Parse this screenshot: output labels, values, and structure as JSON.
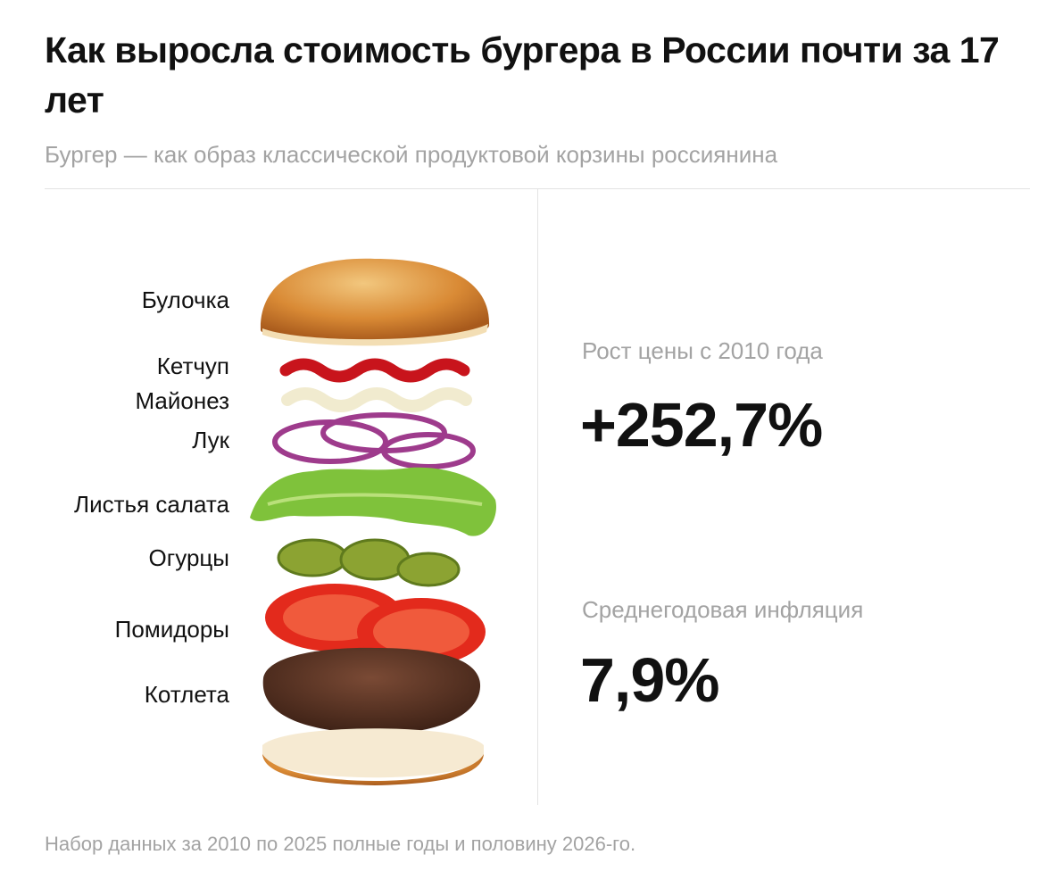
{
  "header": {
    "title": "Как выросла стоимость бургера в России почти за 17 лет",
    "subtitle": "Бургер — как образ классической продуктовой корзины россиянина"
  },
  "ingredients": [
    "Булочка",
    "Кетчуп",
    "Майонез",
    "Лук",
    "Листья салата",
    "Огурцы",
    "Помидоры",
    "Котлета"
  ],
  "stats": [
    {
      "label": "Рост цены с 2010 года",
      "value": "+252,7%"
    },
    {
      "label": "Среднегодовая инфляция",
      "value": "7,9%"
    }
  ],
  "footnote": "Набор данных за 2010 по 2025 полные годы и половину 2026-го."
}
